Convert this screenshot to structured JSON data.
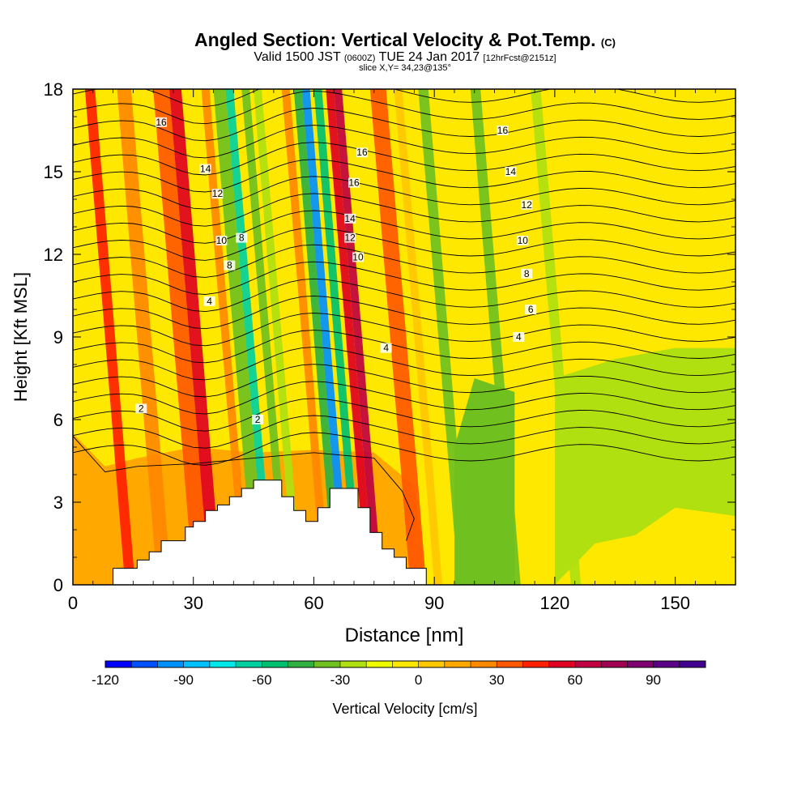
{
  "header": {
    "title": "Angled Section: Vertical Velocity & Pot.Temp.",
    "title_unit": "(C)",
    "valid_a": "Valid 1500 JST",
    "valid_z": "(0600Z)",
    "valid_b": "TUE 24 Jan 2017",
    "fcst": "[12hrFcst@2151z]",
    "slice": "slice X,Y= 34,23@135°"
  },
  "chart_data": {
    "type": "heatmap",
    "xlabel": "Distance [nm]",
    "ylabel": "Height [Kft MSL]",
    "xlim": [
      0,
      165
    ],
    "ylim": [
      0,
      18
    ],
    "xticks": [
      0,
      30,
      60,
      90,
      120,
      150
    ],
    "yticks": [
      0,
      3,
      6,
      9,
      12,
      15,
      18
    ],
    "colorbar": {
      "label": "Vertical Velocity [cm/s]",
      "min": -120,
      "max": 110,
      "step": 10,
      "tick_values": [
        -120,
        -90,
        -60,
        -30,
        0,
        30,
        60,
        90
      ],
      "colors": [
        "#0000ff",
        "#0050ff",
        "#0090ff",
        "#00c0ff",
        "#00e8e8",
        "#00d0a0",
        "#00c070",
        "#30b040",
        "#70c020",
        "#b0e010",
        "#eeff00",
        "#ffe800",
        "#ffc800",
        "#ffa800",
        "#ff8800",
        "#ff5800",
        "#ff2000",
        "#e00020",
        "#c00040",
        "#a00050",
        "#800070",
        "#5a0088",
        "#400090"
      ]
    },
    "contour_labels": {
      "values": [
        "2",
        "4",
        "6",
        "8",
        "10",
        "12",
        "14",
        "16"
      ],
      "units": "C"
    },
    "terrain_profile": [
      [
        0,
        0
      ],
      [
        10,
        0
      ],
      [
        10,
        0.6
      ],
      [
        16,
        0.6
      ],
      [
        16,
        0.9
      ],
      [
        19,
        0.9
      ],
      [
        19,
        1.2
      ],
      [
        22,
        1.2
      ],
      [
        22,
        1.6
      ],
      [
        28,
        1.6
      ],
      [
        28,
        2.1
      ],
      [
        30,
        2.1
      ],
      [
        30,
        2.3
      ],
      [
        33,
        2.3
      ],
      [
        33,
        2.7
      ],
      [
        36,
        2.7
      ],
      [
        36,
        2.9
      ],
      [
        39,
        2.9
      ],
      [
        39,
        3.2
      ],
      [
        42,
        3.2
      ],
      [
        42,
        3.5
      ],
      [
        45,
        3.5
      ],
      [
        45,
        3.8
      ],
      [
        52,
        3.8
      ],
      [
        52,
        3.2
      ],
      [
        55,
        3.2
      ],
      [
        55,
        2.7
      ],
      [
        58,
        2.7
      ],
      [
        58,
        2.3
      ],
      [
        61,
        2.3
      ],
      [
        61,
        2.8
      ],
      [
        64,
        2.8
      ],
      [
        64,
        3.5
      ],
      [
        71,
        3.5
      ],
      [
        71,
        2.8
      ],
      [
        74,
        2.8
      ],
      [
        74,
        1.9
      ],
      [
        77,
        1.9
      ],
      [
        77,
        1.3
      ],
      [
        80,
        1.3
      ],
      [
        80,
        1.0
      ],
      [
        83,
        1.0
      ],
      [
        83,
        0.6
      ],
      [
        88,
        0.6
      ],
      [
        88,
        0
      ],
      [
        0,
        0
      ]
    ],
    "velocity_bands": [
      {
        "x": 13,
        "w": 2.5,
        "level": 16
      },
      {
        "x": 21,
        "w": 3.5,
        "level": 14
      },
      {
        "x": 30,
        "w": 4.0,
        "level": 15
      },
      {
        "x": 34,
        "w": 3.0,
        "level": 17
      },
      {
        "x": 42,
        "w": 2.0,
        "level": 14
      },
      {
        "x": 45,
        "w": 3.0,
        "level": 8
      },
      {
        "x": 48,
        "w": 2.0,
        "level": 5
      },
      {
        "x": 52,
        "w": 2.0,
        "level": 8
      },
      {
        "x": 55,
        "w": 2.0,
        "level": 9
      },
      {
        "x": 62,
        "w": 2.0,
        "level": 14
      },
      {
        "x": 65,
        "w": 2.0,
        "level": 7
      },
      {
        "x": 67,
        "w": 2.0,
        "level": 2
      },
      {
        "x": 70,
        "w": 2.0,
        "level": 6
      },
      {
        "x": 73,
        "w": 2.0,
        "level": 17
      },
      {
        "x": 75,
        "w": 2.0,
        "level": 18
      },
      {
        "x": 84,
        "w": 4.0,
        "level": 15
      },
      {
        "x": 90,
        "w": 2.0,
        "level": 12
      },
      {
        "x": 96,
        "w": 2.5,
        "level": 8
      },
      {
        "x": 109,
        "w": 2.5,
        "level": 8
      },
      {
        "x": 124,
        "w": 2.5,
        "level": 9
      }
    ]
  },
  "colorbar_ticks": [
    "-120",
    "-90",
    "-60",
    "-30",
    "0",
    "30",
    "60",
    "90"
  ],
  "colors": {
    "background": "#ffffff",
    "axis": "#000000",
    "contour": "#000000"
  }
}
